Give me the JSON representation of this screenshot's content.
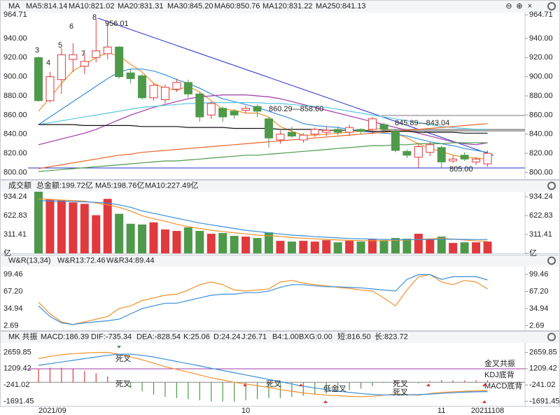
{
  "chart_data": [
    {
      "type": "candlestick",
      "title": "MA",
      "categories": [
        "2021/09",
        null,
        null,
        null,
        null,
        null,
        null,
        null,
        null,
        null,
        null,
        null,
        null,
        null,
        null,
        null,
        null,
        null,
        "10",
        null,
        null,
        null,
        null,
        null,
        null,
        null,
        null,
        null,
        null,
        null,
        null,
        null,
        null,
        null,
        null,
        "11",
        null,
        null,
        null,
        "20211108"
      ],
      "open": [
        920,
        875,
        897,
        918,
        911,
        920,
        924,
        931,
        904,
        901,
        878,
        876,
        887,
        894,
        882,
        860,
        867,
        864,
        865,
        869,
        856,
        834,
        842,
        834,
        840,
        842,
        845,
        842,
        845,
        845,
        850,
        843,
        822,
        816,
        821,
        826,
        812,
        818,
        811,
        809
      ],
      "high": [
        921,
        905,
        930,
        935,
        925,
        960,
        956.01,
        932,
        908,
        903,
        893,
        892,
        898,
        897,
        884,
        874,
        869,
        866,
        870,
        871,
        858,
        844,
        848,
        841,
        847,
        848,
        848,
        850,
        846,
        858,
        852,
        845,
        824,
        830,
        832,
        828,
        818,
        821,
        816,
        823
      ],
      "low": [
        874,
        873,
        882,
        905,
        903,
        915,
        918,
        898,
        893,
        876,
        875,
        872,
        884,
        878,
        853,
        856,
        853,
        856,
        862,
        858,
        826,
        830,
        836,
        831,
        837,
        838,
        839,
        838,
        840,
        840,
        843,
        821,
        815,
        805,
        817,
        805,
        810,
        812,
        808,
        806
      ],
      "close": [
        875,
        900,
        923,
        923,
        916,
        927,
        931,
        900,
        898,
        878,
        891,
        889,
        894,
        882,
        858,
        872,
        858,
        860,
        867,
        864,
        836,
        840,
        838,
        839,
        845,
        844,
        842,
        847,
        843,
        856,
        845,
        823,
        818,
        827,
        829,
        811,
        814,
        814,
        814,
        820
      ],
      "up_color": "#e0393e",
      "down_color": "#4e9a4a",
      "series": [
        {
          "name": "MA5:814.14",
          "color": "#f0912c",
          "values": [
            864,
            878,
            893,
            906,
            913,
            920,
            925,
            922,
            913,
            905,
            893,
            888,
            886,
            890,
            884,
            875,
            866,
            865,
            862,
            862,
            858,
            848,
            843,
            839,
            839,
            840,
            841,
            842,
            843,
            845,
            846,
            841,
            836,
            830,
            825,
            822,
            818,
            816,
            815,
            814
          ]
        },
        {
          "name": "MA10:821.02",
          "color": "#3a8fd9",
          "values": [
            850,
            858,
            866,
            874,
            882,
            890,
            898,
            905,
            908,
            908,
            906,
            902,
            897,
            893,
            888,
            882,
            877,
            874,
            871,
            868,
            864,
            860,
            856,
            851,
            849,
            848,
            847,
            845,
            843,
            842,
            841,
            840,
            838,
            835,
            832,
            830,
            828,
            825,
            823,
            821
          ]
        },
        {
          "name": "MA20:831.31",
          "color": "#a23aa8",
          "values": [
            829,
            832,
            835,
            838,
            841,
            845,
            850,
            855,
            860,
            864,
            868,
            871,
            874,
            877,
            879,
            880,
            881,
            881,
            881,
            880,
            879,
            877,
            874,
            871,
            868,
            865,
            862,
            859,
            856,
            853,
            850,
            847,
            844,
            841,
            838,
            835,
            832,
            830,
            829,
            831
          ]
        },
        {
          "name": "MA30:845.20",
          "color": "#5ec8e0",
          "values": [
            850,
            852,
            854,
            856,
            858,
            860,
            862,
            864,
            866,
            868,
            869,
            870,
            871,
            872,
            872,
            873,
            873,
            873,
            873,
            873,
            872,
            872,
            871,
            870,
            869,
            868,
            866,
            864,
            862,
            860,
            858,
            856,
            854,
            852,
            850,
            848,
            847,
            846,
            845,
            845
          ]
        },
        {
          "name": "MA60:850.76",
          "color": "#e8642a",
          "values": [
            804,
            806,
            808,
            810,
            812,
            814,
            816,
            818,
            819,
            821,
            822,
            823,
            824,
            825,
            826,
            827,
            828,
            829,
            830,
            831,
            832,
            833,
            834,
            835,
            836,
            837,
            838,
            839,
            840,
            841,
            842,
            843,
            844,
            845,
            846,
            847,
            848,
            849,
            850,
            851
          ]
        },
        {
          "name": "MA120:831.22",
          "color": "#4e9a4a",
          "values": [
            801,
            802,
            803,
            804,
            805,
            806,
            807,
            808,
            809,
            810,
            811,
            812,
            812,
            813,
            814,
            815,
            816,
            817,
            818,
            818,
            819,
            820,
            821,
            822,
            823,
            824,
            825,
            826,
            827,
            828,
            828,
            829,
            829,
            830,
            830,
            830,
            831,
            831,
            831,
            831
          ]
        },
        {
          "name": "MA250:841.13",
          "color": "#111111",
          "values": [
            850,
            850,
            850,
            850,
            849,
            849,
            849,
            849,
            849,
            848,
            848,
            848,
            848,
            847,
            847,
            847,
            847,
            846,
            846,
            846,
            846,
            845,
            845,
            845,
            845,
            844,
            844,
            844,
            844,
            843,
            843,
            843,
            843,
            842,
            842,
            842,
            842,
            841,
            841,
            841
          ]
        }
      ],
      "annotations": [
        "3",
        "4",
        "5",
        "6",
        "7",
        "8",
        "956.01",
        "805.00",
        "860.29—858.60",
        "845.89—843.04"
      ],
      "ylim": [
        793,
        967
      ],
      "yticks": [
        {
          "value": 800,
          "label": "800.00"
        },
        {
          "value": 820,
          "label": "820.00"
        },
        {
          "value": 840,
          "label": "840.00"
        },
        {
          "value": 860,
          "label": "860.00"
        },
        {
          "value": 880,
          "label": "880.00"
        },
        {
          "value": 900,
          "label": "900.00"
        },
        {
          "value": 920,
          "label": "920.00"
        },
        {
          "value": 940,
          "label": "940.00"
        },
        964.71
      ]
    },
    {
      "type": "bar",
      "title": "成交额",
      "total_label": "总金额:199.72亿",
      "total_color": "#e0393e",
      "values": [
        1016,
        887,
        875,
        840,
        817,
        629,
        899,
        652,
        488,
        476,
        511,
        394,
        370,
        429,
        370,
        323,
        335,
        288,
        276,
        253,
        347,
        206,
        194,
        206,
        194,
        217,
        182,
        206,
        194,
        229,
        217,
        253,
        241,
        323,
        229,
        276,
        171,
        182,
        182,
        194
      ],
      "series": [
        {
          "name": "MA5:198.76亿",
          "color": "#f0912c",
          "values": [
            900,
            890,
            880,
            870,
            860,
            830,
            800,
            760,
            700,
            620,
            570,
            530,
            480,
            440,
            410,
            380,
            360,
            340,
            320,
            300,
            290,
            280,
            260,
            250,
            240,
            230,
            220,
            215,
            210,
            208,
            206,
            215,
            220,
            230,
            240,
            245,
            235,
            220,
            205,
            199
          ]
        },
        {
          "name": "MA10:227.49亿",
          "color": "#3a8fd9",
          "values": [
            870,
            865,
            860,
            855,
            850,
            840,
            830,
            800,
            760,
            700,
            660,
            620,
            580,
            540,
            500,
            470,
            440,
            410,
            380,
            360,
            340,
            320,
            300,
            290,
            275,
            265,
            255,
            245,
            240,
            235,
            230,
            228,
            226,
            228,
            230,
            232,
            232,
            230,
            228,
            227
          ]
        }
      ],
      "ylim": [
        0,
        1016
      ],
      "yticks": [
        {
          "value": 0,
          "label": "亿"
        },
        311.41,
        622.83,
        934.24
      ]
    },
    {
      "type": "line",
      "title": "W&R(13,34)",
      "series": [
        {
          "name": "W&R13:72.46",
          "color": "#f0912c",
          "values": [
            47,
            25,
            10,
            5,
            10,
            15,
            20,
            35,
            40,
            50,
            55,
            60,
            62,
            70,
            80,
            85,
            80,
            70,
            68,
            70,
            72,
            85,
            88,
            83,
            80,
            78,
            75,
            73,
            70,
            68,
            55,
            40,
            70,
            95,
            99,
            85,
            80,
            88,
            85,
            72
          ]
        },
        {
          "name": "W&R34:89.44",
          "color": "#3a8fd9",
          "values": [
            40,
            20,
            8,
            5,
            8,
            10,
            12,
            15,
            25,
            35,
            40,
            45,
            45,
            50,
            55,
            60,
            62,
            62,
            65,
            65,
            68,
            75,
            80,
            80,
            78,
            76,
            76,
            75,
            74,
            72,
            70,
            68,
            90,
            99,
            99,
            90,
            95,
            95,
            95,
            89
          ]
        }
      ],
      "ylim": [
        -6,
        114
      ],
      "yticks": [
        2.69,
        34.94,
        {
          "value": 67.2,
          "label": "67.20"
        },
        99.46
      ]
    },
    {
      "type": "macd",
      "title": "MK 共振",
      "bar_name": "MACD:186.39",
      "bar_color": "#333333",
      "up_color": "#e0393e",
      "down_color": "#4e9a4a",
      "values": [
        1200,
        1300,
        1300,
        1200,
        1000,
        800,
        518,
        0,
        -500,
        -800,
        -1100,
        -1300,
        -1400,
        -1500,
        -1600,
        -1700,
        -1700,
        -1700,
        -1600,
        -1500,
        -1400,
        -1400,
        -1300,
        -1200,
        -1100,
        -1000,
        -840,
        -700,
        -560,
        -340,
        -60,
        140,
        20,
        -100,
        100,
        180,
        160,
        160,
        180,
        186
      ],
      "series": [
        {
          "name": "DIF:-735.34",
          "color": "#f0912c",
          "values": [
            2100,
            2300,
            2450,
            2550,
            2600,
            2650,
            2659,
            2500,
            2250,
            2000,
            1700,
            1400,
            1150,
            900,
            650,
            400,
            200,
            0,
            -150,
            -300,
            -450,
            -650,
            -800,
            -950,
            -1050,
            -1150,
            -1200,
            -1250,
            -1280,
            -1250,
            -1150,
            -1050,
            -1100,
            -1150,
            -1000,
            -900,
            -850,
            -800,
            -760,
            -735
          ]
        },
        {
          "name": "DEA:-828.54",
          "color": "#3a8fd9",
          "values": [
            1500,
            1650,
            1800,
            1950,
            2100,
            2250,
            2400,
            2500,
            2500,
            2400,
            2250,
            2050,
            1850,
            1650,
            1450,
            1250,
            1050,
            850,
            650,
            450,
            250,
            50,
            -150,
            -350,
            -500,
            -650,
            -780,
            -900,
            -1000,
            -1080,
            -1120,
            -1120,
            -1110,
            -1100,
            -1050,
            -990,
            -930,
            -880,
            -850,
            -829
          ]
        }
      ],
      "legend_extra": [
        {
          "text": "K:25.06",
          "color": "#e0393e"
        },
        {
          "text": "D:24.24",
          "color": "#3a8fd9"
        },
        {
          "text": "J:26.71",
          "color": "#a23aa8"
        },
        {
          "text": "B4:1.00",
          "color": "#333333"
        },
        {
          "text": "BXG:0.00",
          "color": "#4e9a4a"
        },
        {
          "text": "短:816.50",
          "color": "#4e9a4a"
        },
        {
          "text": "长:823.72",
          "color": "#a23aa8"
        }
      ],
      "annotations": [
        "死叉",
        "死叉",
        "死叉",
        "低金叉",
        "死叉",
        "死叉",
        "金叉共振",
        "KDJ底背",
        "MACD底背"
      ],
      "ylim": [
        -2100,
        3500
      ],
      "yticks": [
        -1691.45,
        -241.02,
        1209.42,
        2659.85
      ]
    }
  ]
}
